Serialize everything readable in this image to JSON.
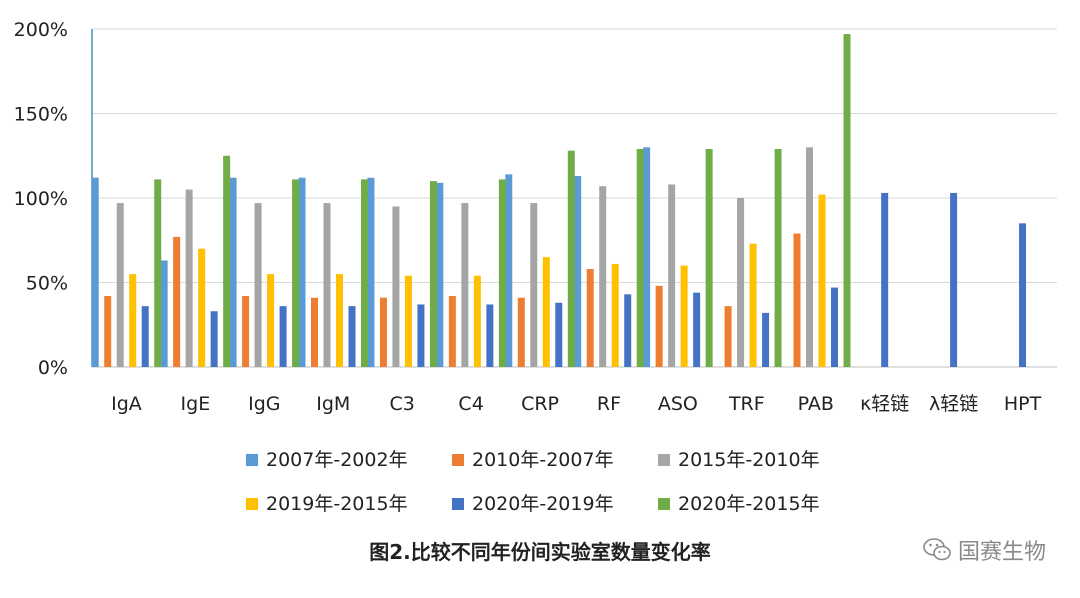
{
  "chart_data": {
    "type": "bar",
    "title": "图2.比较不同年份间实验室数量变化率",
    "categories": [
      "IgA",
      "IgE",
      "IgG",
      "IgM",
      "C3",
      "C4",
      "CRP",
      "RF",
      "ASO",
      "TRF",
      "PAB",
      "κ轻链",
      "λ轻链",
      "HPT"
    ],
    "ylim": [
      0,
      200
    ],
    "yticks": [
      0,
      50,
      100,
      150,
      200
    ],
    "ytick_labels": [
      "0%",
      "50%",
      "100%",
      "150%",
      "200%"
    ],
    "xlabel": "",
    "ylabel": "",
    "grid": true,
    "legend_position": "bottom",
    "series": [
      {
        "name": "2007年-2002年",
        "color": "#5B9BD5",
        "values": [
          112,
          63,
          112,
          112,
          112,
          109,
          114,
          113,
          130,
          null,
          null,
          null,
          null,
          null
        ]
      },
      {
        "name": "2010年-2007年",
        "color": "#ED7D31",
        "values": [
          42,
          77,
          42,
          41,
          41,
          42,
          41,
          58,
          48,
          36,
          79,
          null,
          null,
          null
        ]
      },
      {
        "name": "2015年-2010年",
        "color": "#A5A5A5",
        "values": [
          97,
          105,
          97,
          97,
          95,
          97,
          97,
          107,
          108,
          100,
          130,
          null,
          null,
          null
        ]
      },
      {
        "name": "2019年-2015年",
        "color": "#FFC000",
        "values": [
          55,
          70,
          55,
          55,
          54,
          54,
          65,
          61,
          60,
          73,
          102,
          null,
          null,
          null
        ]
      },
      {
        "name": "2020年-2019年",
        "color": "#4472C4",
        "values": [
          36,
          33,
          36,
          36,
          37,
          37,
          38,
          43,
          44,
          32,
          47,
          103,
          103,
          85
        ]
      },
      {
        "name": "2020年-2015年",
        "color": "#70AD47",
        "values": [
          111,
          125,
          111,
          111,
          110,
          111,
          128,
          129,
          129,
          129,
          197,
          null,
          null,
          null
        ]
      }
    ]
  },
  "watermark": "国赛生物",
  "wechat_icon": "wechat-icon"
}
